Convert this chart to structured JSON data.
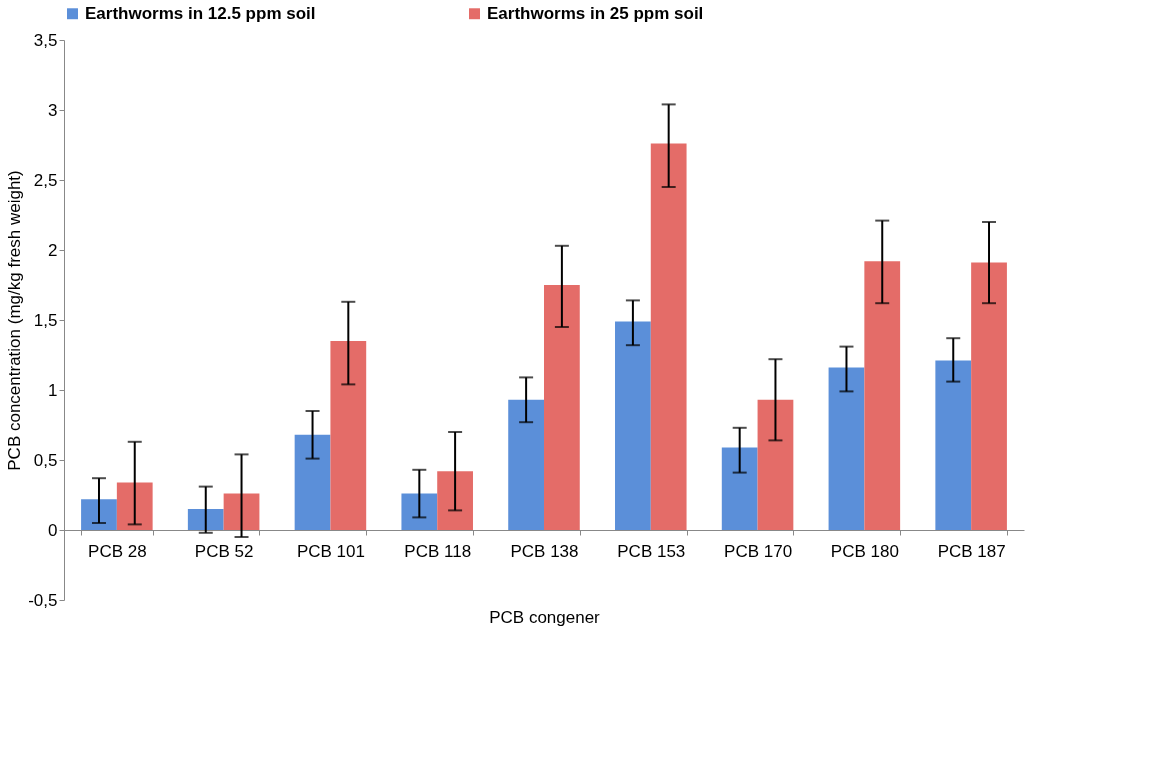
{
  "chart_data": {
    "type": "bar",
    "xlabel": "PCB congener",
    "ylabel": "PCB concentration (mg/kg  fresh weight)",
    "categories": [
      "PCB 28",
      "PCB 52",
      "PCB 101",
      "PCB 118",
      "PCB 138",
      "PCB 153",
      "PCB 170",
      "PCB 180",
      "PCB 187"
    ],
    "series": [
      {
        "name": "Earthworms in 12.5 ppm soil",
        "color": "#5b8fd9",
        "values": [
          0.22,
          0.15,
          0.68,
          0.26,
          0.93,
          1.49,
          0.59,
          1.16,
          1.21
        ],
        "errors": [
          [
            0.05,
            0.37
          ],
          [
            -0.02,
            0.31
          ],
          [
            0.51,
            0.85
          ],
          [
            0.09,
            0.43
          ],
          [
            0.77,
            1.09
          ],
          [
            1.32,
            1.64
          ],
          [
            0.41,
            0.73
          ],
          [
            0.99,
            1.31
          ],
          [
            1.06,
            1.37
          ]
        ]
      },
      {
        "name": "Earthworms in 25 ppm soil",
        "color": "#e46c68",
        "values": [
          0.34,
          0.26,
          1.35,
          0.42,
          1.75,
          2.76,
          0.93,
          1.92,
          1.91
        ],
        "errors": [
          [
            0.04,
            0.63
          ],
          [
            -0.05,
            0.54
          ],
          [
            1.04,
            1.63
          ],
          [
            0.14,
            0.7
          ],
          [
            1.45,
            2.03
          ],
          [
            2.45,
            3.04
          ],
          [
            0.64,
            1.22
          ],
          [
            1.62,
            2.21
          ],
          [
            1.62,
            2.2
          ]
        ]
      }
    ],
    "ylim": [
      -0.5,
      3.5
    ],
    "yticks": [
      {
        "value": -0.5,
        "label": "-0,5"
      },
      0,
      {
        "value": 0.5,
        "label": "0,5"
      },
      1,
      {
        "value": 1.5,
        "label": "1,5"
      },
      2,
      {
        "value": 2.5,
        "label": "2,5"
      },
      3,
      {
        "value": 3.5,
        "label": "3,5"
      }
    ],
    "grid": false,
    "legend": "top"
  }
}
